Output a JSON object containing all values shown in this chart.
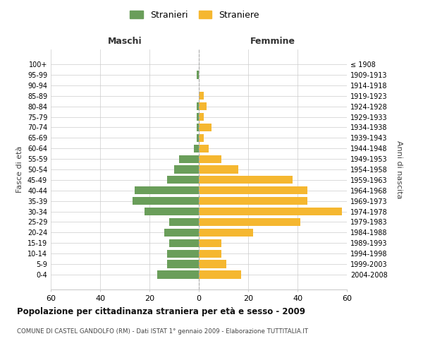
{
  "age_groups": [
    "0-4",
    "5-9",
    "10-14",
    "15-19",
    "20-24",
    "25-29",
    "30-34",
    "35-39",
    "40-44",
    "45-49",
    "50-54",
    "55-59",
    "60-64",
    "65-69",
    "70-74",
    "75-79",
    "80-84",
    "85-89",
    "90-94",
    "95-99",
    "100+"
  ],
  "birth_years": [
    "2004-2008",
    "1999-2003",
    "1994-1998",
    "1989-1993",
    "1984-1988",
    "1979-1983",
    "1974-1978",
    "1969-1973",
    "1964-1968",
    "1959-1963",
    "1954-1958",
    "1949-1953",
    "1944-1948",
    "1939-1943",
    "1934-1938",
    "1929-1933",
    "1924-1928",
    "1919-1923",
    "1914-1918",
    "1909-1913",
    "≤ 1908"
  ],
  "maschi": [
    17,
    13,
    13,
    12,
    14,
    12,
    22,
    27,
    26,
    13,
    10,
    8,
    2,
    1,
    1,
    1,
    1,
    0,
    0,
    1,
    0
  ],
  "femmine": [
    17,
    11,
    9,
    9,
    22,
    41,
    58,
    44,
    44,
    38,
    16,
    9,
    4,
    2,
    5,
    2,
    3,
    2,
    0,
    0,
    0
  ],
  "color_maschi": "#6a9e5a",
  "color_femmine": "#f5b730",
  "title": "Popolazione per cittadinanza straniera per età e sesso - 2009",
  "subtitle": "COMUNE DI CASTEL GANDOLFO (RM) - Dati ISTAT 1° gennaio 2009 - Elaborazione TUTTITALIA.IT",
  "legend_maschi": "Stranieri",
  "legend_femmine": "Straniere",
  "xlabel_left": "Maschi",
  "xlabel_right": "Femmine",
  "ylabel_left": "Fasce di età",
  "ylabel_right": "Anni di nascita",
  "xlim": 60,
  "background_color": "#ffffff",
  "grid_color": "#cccccc"
}
